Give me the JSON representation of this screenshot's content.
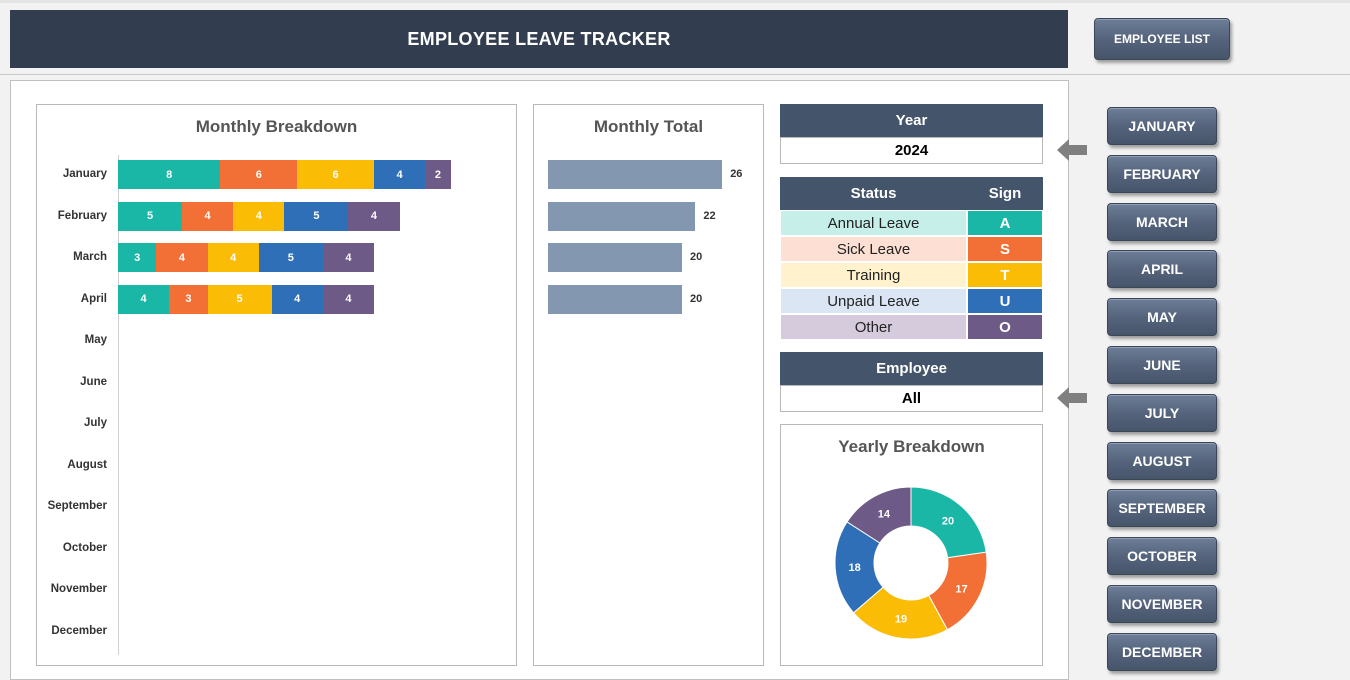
{
  "header": {
    "title": "EMPLOYEE LEAVE TRACKER",
    "employee_list_label": "EMPLOYEE LIST"
  },
  "colors": {
    "annual": "#1ab7a6",
    "sick": "#f26f35",
    "training": "#fbbc05",
    "unpaid": "#2e6fb7",
    "other": "#6d5a86",
    "total_bar": "#8497b0",
    "header_bg": "#323e4f"
  },
  "monthly_breakdown": {
    "title": "Monthly Breakdown",
    "months": [
      "January",
      "February",
      "March",
      "April",
      "May",
      "June",
      "July",
      "August",
      "September",
      "October",
      "November",
      "December"
    ]
  },
  "monthly_total": {
    "title": "Monthly Total"
  },
  "year": {
    "label": "Year",
    "value": "2024"
  },
  "status_table": {
    "status_header": "Status",
    "sign_header": "Sign",
    "rows": [
      {
        "name": "Annual Leave",
        "sign": "A"
      },
      {
        "name": "Sick Leave",
        "sign": "S"
      },
      {
        "name": "Training",
        "sign": "T"
      },
      {
        "name": "Unpaid Leave",
        "sign": "U"
      },
      {
        "name": "Other",
        "sign": "O"
      }
    ]
  },
  "employee": {
    "label": "Employee",
    "value": "All"
  },
  "yearly_breakdown": {
    "title": "Yearly Breakdown"
  },
  "month_buttons": [
    "JANUARY",
    "FEBRUARY",
    "MARCH",
    "APRIL",
    "MAY",
    "JUNE",
    "JULY",
    "AUGUST",
    "SEPTEMBER",
    "OCTOBER",
    "NOVEMBER",
    "DECEMBER"
  ],
  "chart_data": [
    {
      "type": "bar",
      "orientation": "horizontal",
      "stacked": true,
      "title": "Monthly Breakdown",
      "categories": [
        "January",
        "February",
        "March",
        "April",
        "May",
        "June",
        "July",
        "August",
        "September",
        "October",
        "November",
        "December"
      ],
      "series": [
        {
          "name": "Annual Leave",
          "values": [
            8,
            5,
            3,
            4,
            0,
            0,
            0,
            0,
            0,
            0,
            0,
            0
          ]
        },
        {
          "name": "Sick Leave",
          "values": [
            6,
            4,
            4,
            3,
            0,
            0,
            0,
            0,
            0,
            0,
            0,
            0
          ]
        },
        {
          "name": "Training",
          "values": [
            6,
            4,
            4,
            5,
            0,
            0,
            0,
            0,
            0,
            0,
            0,
            0
          ]
        },
        {
          "name": "Unpaid Leave",
          "values": [
            4,
            5,
            5,
            4,
            0,
            0,
            0,
            0,
            0,
            0,
            0,
            0
          ]
        },
        {
          "name": "Other",
          "values": [
            2,
            4,
            4,
            4,
            0,
            0,
            0,
            0,
            0,
            0,
            0,
            0
          ]
        }
      ],
      "xlim": [
        0,
        40
      ]
    },
    {
      "type": "bar",
      "orientation": "horizontal",
      "title": "Monthly Total",
      "categories": [
        "January",
        "February",
        "March",
        "April"
      ],
      "values": [
        26,
        22,
        20,
        20
      ],
      "xlim": [
        0,
        40
      ]
    },
    {
      "type": "pie",
      "donut": true,
      "title": "Yearly Breakdown",
      "labels": [
        "Annual Leave",
        "Sick Leave",
        "Training",
        "Unpaid Leave",
        "Other"
      ],
      "values": [
        20,
        17,
        19,
        18,
        14
      ]
    }
  ]
}
